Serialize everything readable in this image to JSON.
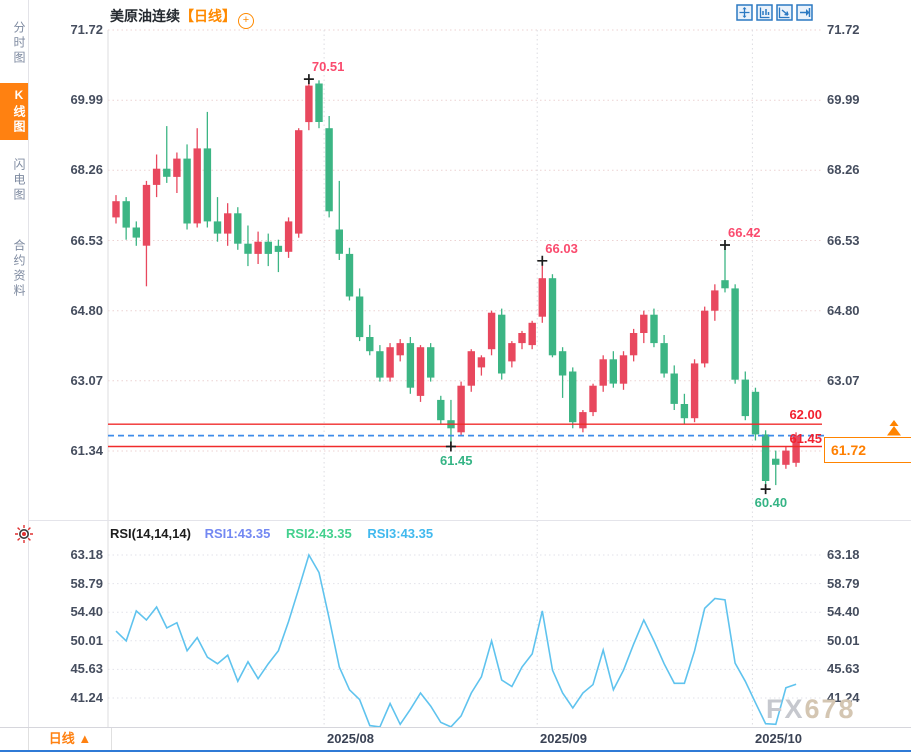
{
  "sidebar": {
    "items": [
      {
        "label": "分时图",
        "active": false
      },
      {
        "label": "K线图",
        "active": true
      },
      {
        "label": "闪电图",
        "active": false
      },
      {
        "label": "合约资料",
        "active": false
      }
    ]
  },
  "header": {
    "symbol": "美原油连续",
    "period_tag": "【日线】",
    "add_icon": "+",
    "toolbar_icons": [
      "crosshair-move-icon",
      "scale-left-icon",
      "scale-right-icon",
      "jump-latest-icon"
    ]
  },
  "rsi_header": {
    "params": "RSI(14,14,14)",
    "series": [
      {
        "text": "RSI1:43.35",
        "color": "#7388f2"
      },
      {
        "text": "RSI2:43.35",
        "color": "#43d08e"
      },
      {
        "text": "RSI3:43.35",
        "color": "#41b9ee"
      }
    ]
  },
  "bottom": {
    "period_button": "日线",
    "period_arrow": "▲",
    "x_labels": [
      "2025/08",
      "2025/09",
      "2025/10"
    ]
  },
  "watermark": {
    "fx": "FX",
    "num": "678"
  },
  "chart_data": {
    "type": "candlestick+line",
    "symbol": "美原油连续",
    "period": "日线",
    "up_color": "#e8485e",
    "down_color": "#3cb584",
    "rsi_line_color": "#5fc3ee",
    "grid_h_color": "#ecd2d2",
    "grid_v_color": "#dcdce2",
    "price_axis_ticks": [
      "71.72",
      "69.99",
      "68.26",
      "66.53",
      "64.80",
      "63.07",
      "61.34"
    ],
    "rsi_axis_ticks": [
      "63.18",
      "58.79",
      "54.40",
      "50.01",
      "45.63",
      "41.24"
    ],
    "x_ticks": [
      "2025/08",
      "2025/09",
      "2025/10"
    ],
    "x_tick_boundary_index": [
      20.5,
      41.5,
      62.7
    ],
    "current_price": "61.72",
    "hlines": [
      {
        "label": "62.00",
        "value": 62.0,
        "color": "#f02b2b"
      },
      {
        "label": "61.45",
        "value": 61.45,
        "color": "#f02b2b"
      }
    ],
    "dashed_line": {
      "value": 61.72,
      "color": "#3f8cea"
    },
    "annotations": [
      {
        "text": "70.51",
        "index": 19,
        "price": 70.51,
        "pos": "high",
        "color": "#fa4b6e"
      },
      {
        "text": "66.03",
        "index": 42,
        "price": 66.03,
        "pos": "high",
        "color": "#fa4b6e"
      },
      {
        "text": "66.42",
        "index": 60,
        "price": 66.42,
        "pos": "high",
        "color": "#fa4b6e"
      },
      {
        "text": "61.45",
        "index": 33,
        "price": 61.45,
        "pos": "low",
        "color": "#35b485"
      },
      {
        "text": "60.40",
        "index": 64,
        "price": 60.4,
        "pos": "low",
        "color": "#35b485"
      }
    ],
    "candles": [
      [
        67.1,
        67.65,
        66.95,
        67.5
      ],
      [
        67.5,
        67.6,
        66.55,
        66.85
      ],
      [
        66.85,
        67.0,
        66.4,
        66.6
      ],
      [
        66.4,
        68.0,
        65.4,
        67.9
      ],
      [
        67.9,
        68.65,
        67.6,
        68.3
      ],
      [
        68.3,
        69.35,
        67.95,
        68.1
      ],
      [
        68.1,
        68.7,
        67.7,
        68.55
      ],
      [
        68.55,
        68.9,
        66.8,
        66.95
      ],
      [
        66.95,
        69.3,
        66.85,
        68.8
      ],
      [
        68.8,
        69.7,
        66.85,
        67.0
      ],
      [
        67.0,
        67.6,
        66.5,
        66.7
      ],
      [
        66.7,
        67.45,
        66.4,
        67.2
      ],
      [
        67.2,
        67.35,
        66.3,
        66.45
      ],
      [
        66.45,
        66.9,
        65.9,
        66.2
      ],
      [
        66.2,
        66.75,
        65.95,
        66.5
      ],
      [
        66.5,
        66.7,
        65.9,
        66.2
      ],
      [
        66.4,
        66.55,
        65.75,
        66.25
      ],
      [
        66.25,
        67.1,
        66.1,
        67.0
      ],
      [
        66.7,
        69.3,
        66.6,
        69.25
      ],
      [
        69.45,
        70.51,
        69.25,
        70.35
      ],
      [
        70.4,
        70.48,
        69.3,
        69.45
      ],
      [
        69.3,
        69.6,
        67.1,
        67.25
      ],
      [
        66.8,
        68.0,
        66.05,
        66.2
      ],
      [
        66.2,
        66.35,
        65.05,
        65.15
      ],
      [
        65.15,
        65.35,
        64.05,
        64.15
      ],
      [
        64.15,
        64.45,
        63.7,
        63.8
      ],
      [
        63.8,
        63.95,
        63.05,
        63.15
      ],
      [
        63.15,
        64.0,
        63.05,
        63.9
      ],
      [
        63.7,
        64.1,
        63.55,
        64.0
      ],
      [
        64.0,
        64.15,
        62.75,
        62.9
      ],
      [
        62.7,
        63.95,
        62.55,
        63.9
      ],
      [
        63.9,
        64.0,
        63.05,
        63.15
      ],
      [
        62.6,
        62.7,
        62.0,
        62.1
      ],
      [
        62.1,
        62.6,
        61.45,
        61.9
      ],
      [
        61.8,
        63.05,
        61.7,
        62.95
      ],
      [
        62.95,
        63.85,
        62.8,
        63.8
      ],
      [
        63.4,
        63.7,
        63.2,
        63.65
      ],
      [
        63.85,
        64.8,
        63.7,
        64.75
      ],
      [
        64.7,
        64.85,
        63.1,
        63.25
      ],
      [
        63.55,
        64.05,
        63.4,
        64.0
      ],
      [
        64.0,
        64.3,
        63.85,
        64.25
      ],
      [
        63.95,
        64.55,
        63.85,
        64.5
      ],
      [
        64.65,
        66.03,
        64.5,
        65.6
      ],
      [
        65.6,
        65.7,
        63.65,
        63.7
      ],
      [
        63.8,
        63.9,
        62.65,
        63.2
      ],
      [
        63.3,
        63.4,
        61.9,
        62.05
      ],
      [
        61.9,
        62.35,
        61.8,
        62.3
      ],
      [
        62.3,
        63.0,
        62.2,
        62.95
      ],
      [
        62.95,
        63.7,
        62.8,
        63.6
      ],
      [
        63.6,
        63.8,
        62.9,
        63.0
      ],
      [
        63.0,
        63.8,
        62.85,
        63.7
      ],
      [
        63.7,
        64.35,
        63.55,
        64.25
      ],
      [
        64.25,
        64.8,
        64.0,
        64.7
      ],
      [
        64.7,
        64.85,
        63.9,
        64.0
      ],
      [
        64.0,
        64.2,
        63.15,
        63.25
      ],
      [
        63.25,
        63.45,
        62.35,
        62.5
      ],
      [
        62.5,
        62.75,
        62.0,
        62.15
      ],
      [
        62.15,
        63.6,
        62.05,
        63.5
      ],
      [
        63.5,
        64.9,
        63.4,
        64.8
      ],
      [
        64.8,
        65.45,
        64.55,
        65.3
      ],
      [
        65.55,
        66.42,
        65.25,
        65.35
      ],
      [
        65.35,
        65.45,
        63.0,
        63.1
      ],
      [
        63.1,
        63.3,
        62.1,
        62.2
      ],
      [
        62.8,
        62.9,
        61.6,
        61.75
      ],
      [
        61.75,
        61.85,
        60.4,
        60.6
      ],
      [
        61.15,
        61.35,
        60.5,
        61.0
      ],
      [
        61.0,
        61.45,
        60.9,
        61.35
      ],
      [
        61.05,
        61.8,
        60.95,
        61.72
      ]
    ],
    "rsi_values": [
      51.5,
      50.0,
      54.6,
      53.2,
      55.2,
      52.0,
      52.8,
      48.5,
      50.5,
      47.5,
      46.5,
      47.8,
      43.8,
      46.8,
      44.2,
      46.5,
      48.5,
      53.0,
      58.0,
      63.18,
      60.5,
      53.5,
      46.0,
      42.5,
      41.0,
      37.0,
      36.8,
      40.4,
      37.2,
      39.5,
      42.0,
      40.0,
      37.5,
      36.8,
      38.5,
      42.0,
      44.5,
      50.0,
      44.0,
      43.0,
      46.0,
      48.0,
      54.6,
      45.5,
      42.0,
      39.7,
      42.0,
      43.3,
      48.6,
      42.5,
      45.5,
      49.5,
      53.2,
      50.0,
      46.5,
      43.5,
      43.5,
      48.5,
      55.0,
      56.5,
      56.3,
      46.6,
      43.8,
      40.5,
      37.3,
      37.2,
      42.8,
      43.35
    ]
  }
}
